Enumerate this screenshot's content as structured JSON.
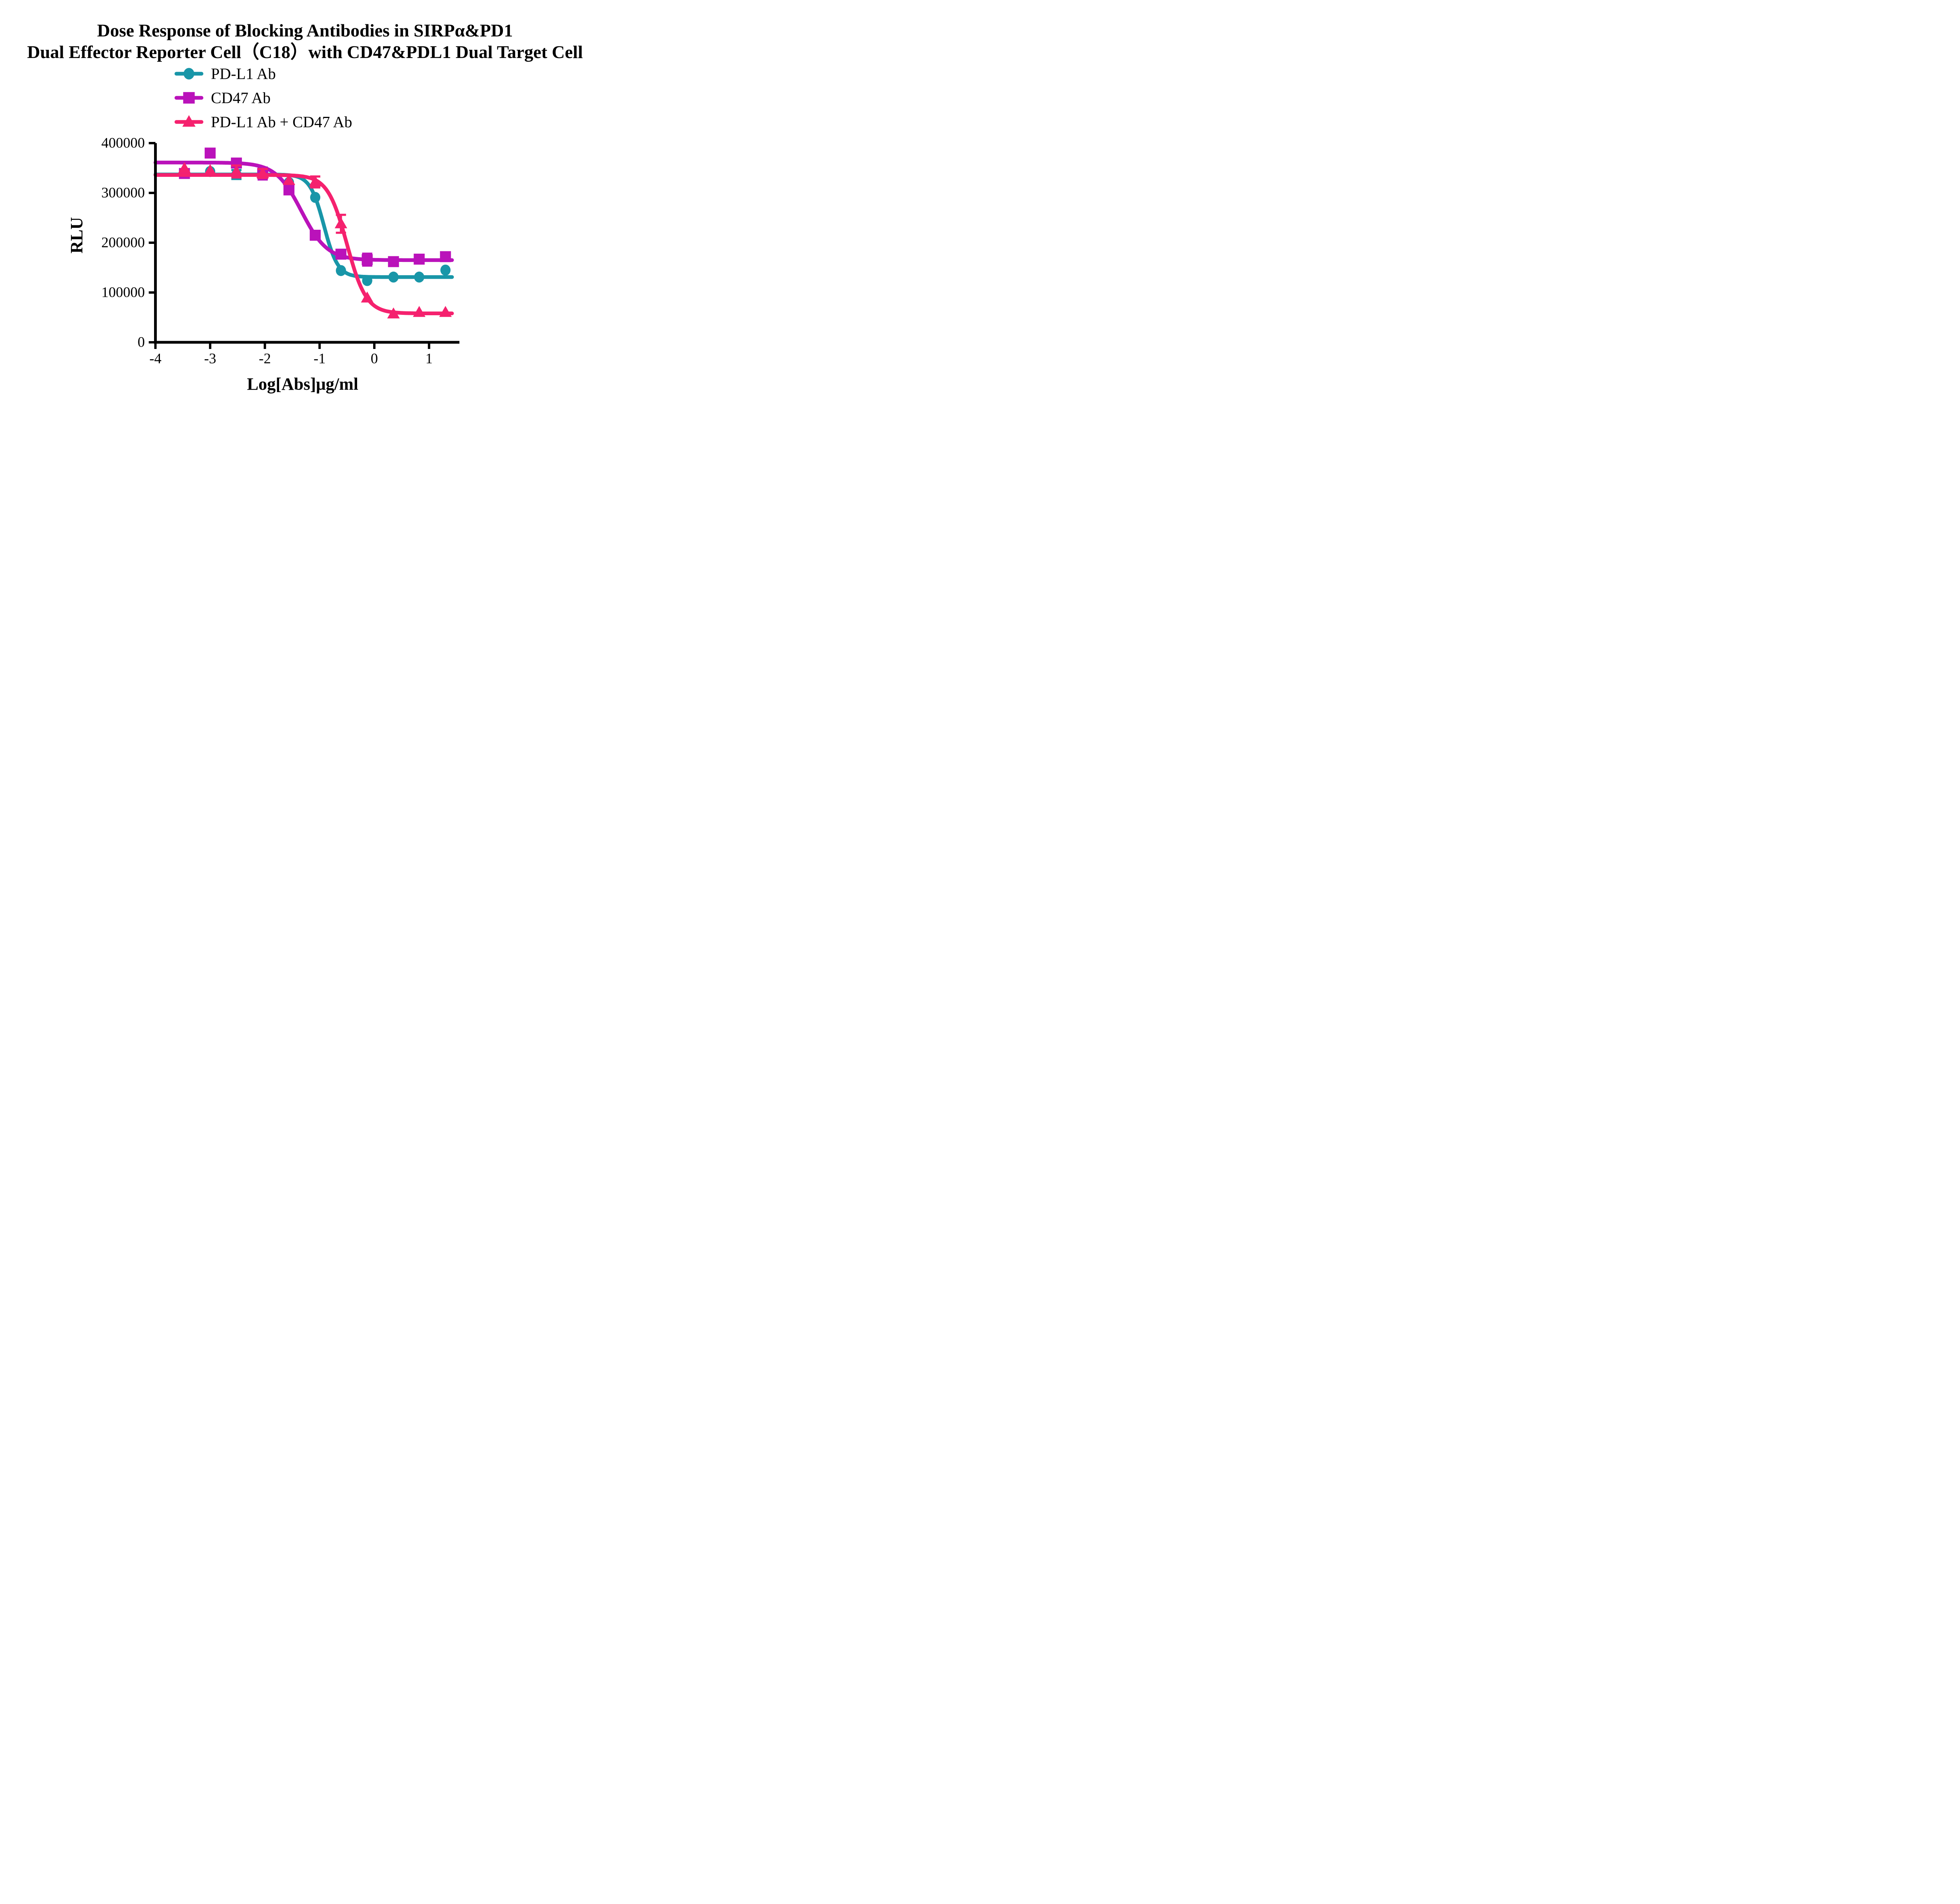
{
  "title": {
    "line1": "Dose Response of Blocking Antibodies in SIRPα&PD1",
    "line2": "Dual Effector Reporter Cell（C18）with CD47&PDL1 Dual Target Cell"
  },
  "chart_data": {
    "type": "line",
    "title": "Dose Response of Blocking Antibodies in SIRPα&PD1 Dual Effector Reporter Cell（C18）with CD47&PDL1 Dual Target Cell",
    "xlabel": "Log[Abs]μg/ml",
    "ylabel": "RLU",
    "x_ticks": [
      -4,
      -3,
      -2,
      -1,
      0,
      1
    ],
    "y_ticks": [
      400000,
      300000,
      200000,
      100000,
      0
    ],
    "xlim": [
      -4,
      1.56
    ],
    "ylim": [
      0,
      400000
    ],
    "grid": false,
    "legend_position": "top-left above plot",
    "curve_model": "four-parameter log(inhibitor) vs response",
    "series": [
      {
        "name": "PD-L1 Ab",
        "color": "#1896a8",
        "marker": "circle",
        "points": [
          {
            "x": -3.47,
            "y": 341000,
            "err": 0
          },
          {
            "x": -3.0,
            "y": 343000,
            "err": 0
          },
          {
            "x": -2.52,
            "y": 337000,
            "err": 9000
          },
          {
            "x": -2.04,
            "y": 340000,
            "err": 8000
          },
          {
            "x": -1.56,
            "y": 321000,
            "err": 0
          },
          {
            "x": -1.08,
            "y": 291000,
            "err": 0
          },
          {
            "x": -0.61,
            "y": 144000,
            "err": 0
          },
          {
            "x": -0.13,
            "y": 124000,
            "err": 0
          },
          {
            "x": 0.35,
            "y": 131000,
            "err": 0
          },
          {
            "x": 0.82,
            "y": 131000,
            "err": 0
          },
          {
            "x": 1.3,
            "y": 145000,
            "err": 0
          }
        ],
        "fit": {
          "top": 337000,
          "bottom": 131000,
          "logIC50": -0.92,
          "hill": 3.4
        }
      },
      {
        "name": "CD47 Ab",
        "color": "#ba12ba",
        "marker": "square",
        "points": [
          {
            "x": -3.47,
            "y": 339000,
            "err": 0
          },
          {
            "x": -3.0,
            "y": 380000,
            "err": 0
          },
          {
            "x": -2.52,
            "y": 360000,
            "err": 0
          },
          {
            "x": -2.04,
            "y": 339000,
            "err": 12000
          },
          {
            "x": -1.56,
            "y": 306000,
            "err": 0
          },
          {
            "x": -1.08,
            "y": 215000,
            "err": 0
          },
          {
            "x": -0.61,
            "y": 177000,
            "err": 0
          },
          {
            "x": -0.13,
            "y": 166000,
            "err": 12000
          },
          {
            "x": 0.35,
            "y": 162000,
            "err": 0
          },
          {
            "x": 0.82,
            "y": 167000,
            "err": 0
          },
          {
            "x": 1.3,
            "y": 172000,
            "err": 0
          }
        ],
        "fit": {
          "top": 361000,
          "bottom": 165000,
          "logIC50": -1.33,
          "hill": 1.85
        }
      },
      {
        "name": "PD-L1 Ab + CD47 Ab",
        "color": "#f5216e",
        "marker": "triangle",
        "points": [
          {
            "x": -3.47,
            "y": 349000,
            "err": 0
          },
          {
            "x": -3.0,
            "y": 345000,
            "err": 0
          },
          {
            "x": -2.52,
            "y": 343000,
            "err": 12000
          },
          {
            "x": -2.04,
            "y": 339000,
            "err": 9000
          },
          {
            "x": -1.56,
            "y": 325000,
            "err": 0
          },
          {
            "x": -1.08,
            "y": 322000,
            "err": 11000
          },
          {
            "x": -0.61,
            "y": 238000,
            "err": 18000
          },
          {
            "x": -0.13,
            "y": 89000,
            "err": 0
          },
          {
            "x": 0.35,
            "y": 57000,
            "err": 0
          },
          {
            "x": 0.82,
            "y": 60000,
            "err": 0
          },
          {
            "x": 1.3,
            "y": 60000,
            "err": 0
          }
        ],
        "fit": {
          "top": 336000,
          "bottom": 58000,
          "logIC50": -0.5,
          "hill": 2.46
        }
      }
    ]
  }
}
